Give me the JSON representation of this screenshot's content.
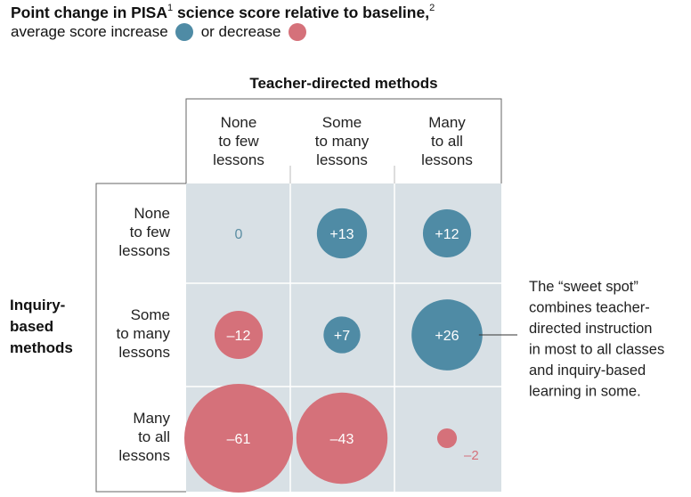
{
  "title": {
    "main": "Point change in PISA",
    "footnote_1": "1",
    "rest": " science score relative to baseline,",
    "footnote_2": "2"
  },
  "legend": {
    "increase_label": "average score increase",
    "decrease_label": "or decrease"
  },
  "colors": {
    "increase": "#4f8ba5",
    "decrease": "#d5717a",
    "cell_bg": "#d8e0e5",
    "grid_line": "#ffffff",
    "bracket": "#666666",
    "zero_label": "#5c8ea3",
    "negative_outside_label": "#d5717a"
  },
  "chart_data": {
    "type": "bubble-matrix",
    "title": "Point change in PISA science score relative to baseline",
    "x_axis_title": "Teacher-directed methods",
    "y_axis_title": [
      "Inquiry-",
      "based",
      "methods"
    ],
    "columns": [
      [
        "None",
        "to few",
        "lessons"
      ],
      [
        "Some",
        "to many",
        "lessons"
      ],
      [
        "Many",
        "to all",
        "lessons"
      ]
    ],
    "rows": [
      [
        "None",
        "to few",
        "lessons"
      ],
      [
        "Some",
        "to many",
        "lessons"
      ],
      [
        "Many",
        "to all",
        "lessons"
      ]
    ],
    "values": [
      [
        0,
        13,
        12
      ],
      [
        -12,
        7,
        26
      ],
      [
        -61,
        -43,
        -2
      ]
    ],
    "labels": [
      [
        "0",
        "+13",
        "+12"
      ],
      [
        "–12",
        "+7",
        "+26"
      ],
      [
        "–61",
        "–43",
        "–2"
      ]
    ],
    "annotation": {
      "row": 1,
      "col": 2,
      "lines": [
        "The “sweet spot”",
        "combines teacher-",
        "directed instruction",
        "in most to all classes",
        "and inquiry-based",
        "learning in some."
      ]
    }
  }
}
